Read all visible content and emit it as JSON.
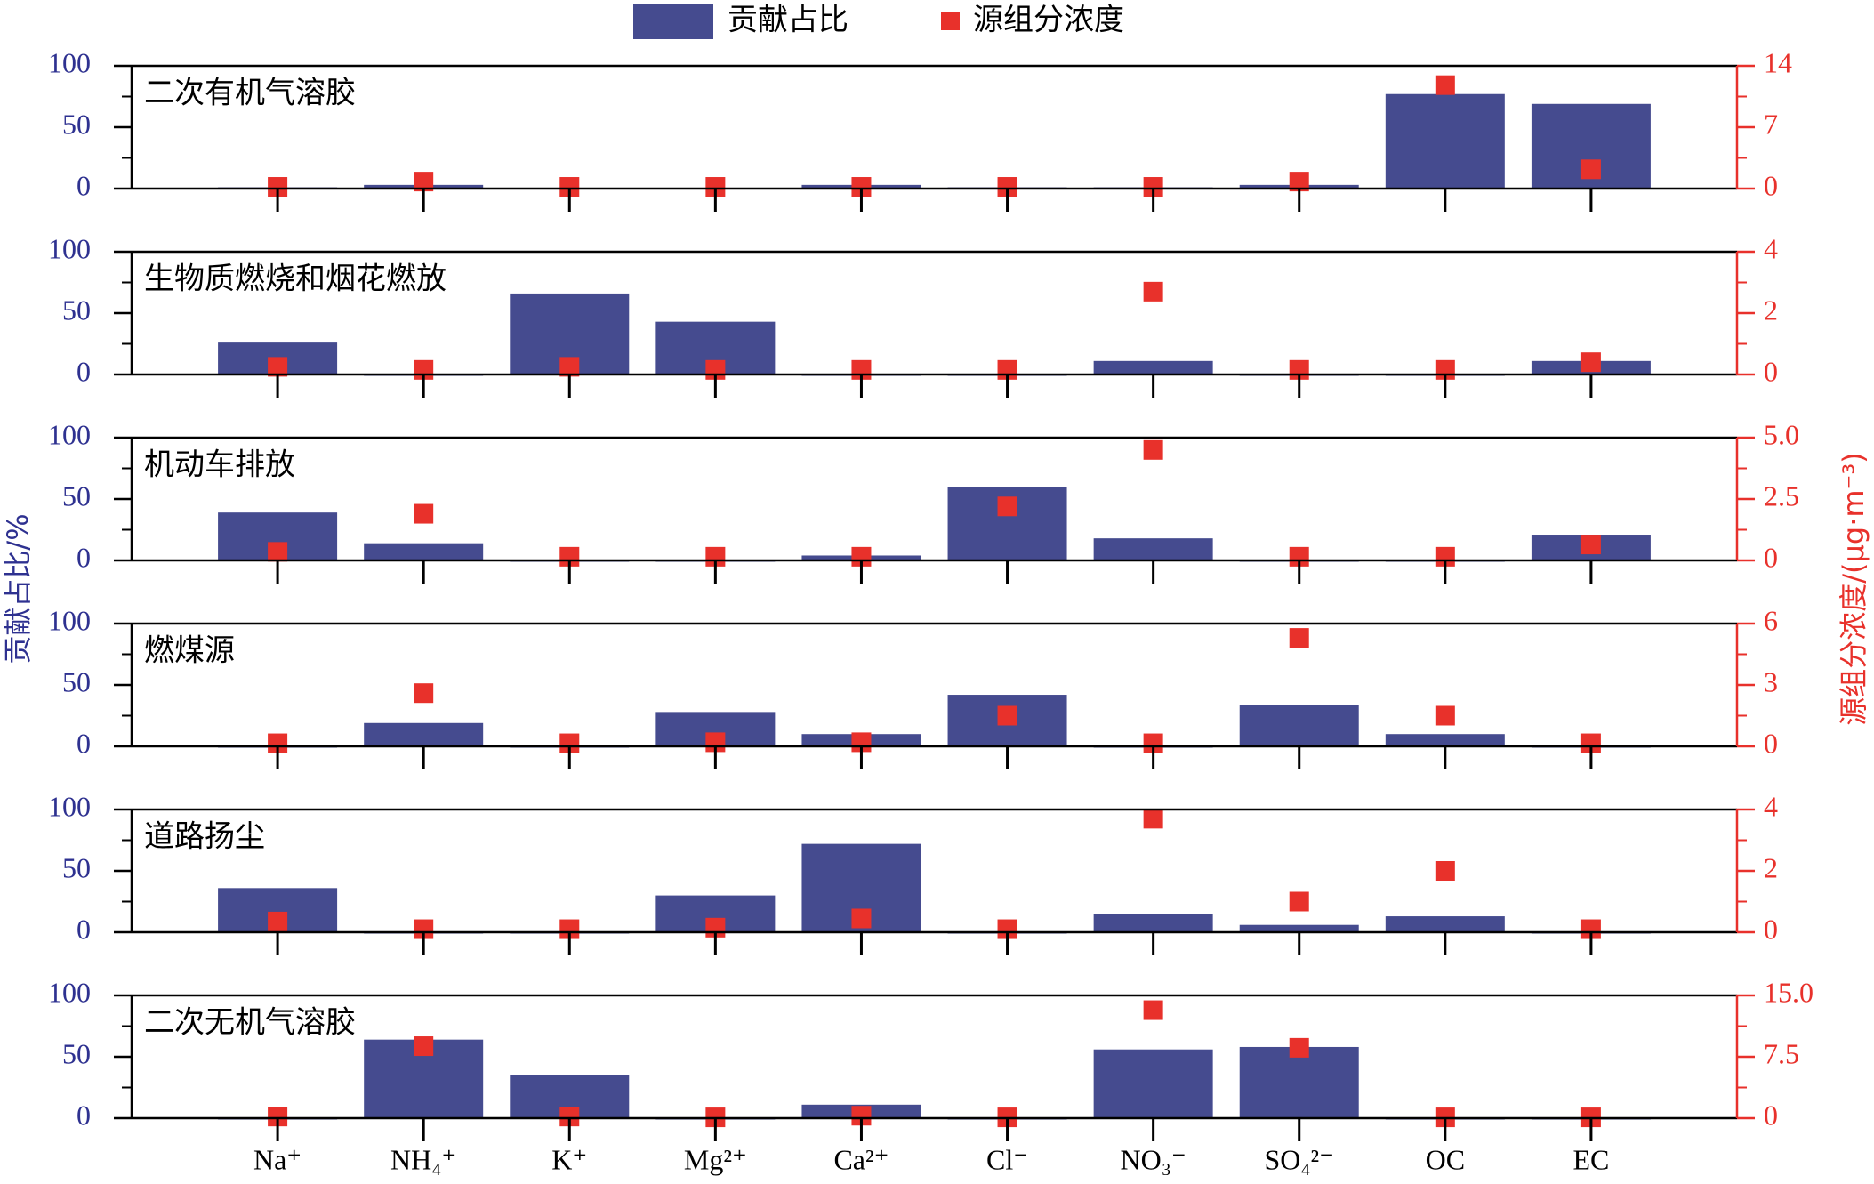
{
  "chart_data": [
    {
      "type": "bar_scatter",
      "title": "二次有机气溶胶",
      "series": [
        {
          "name": "贡献占比",
          "color": "#454b8f",
          "values": [
            1,
            3,
            0.5,
            0.5,
            3,
            1,
            1,
            3,
            77,
            69
          ]
        },
        {
          "name": "源组分浓度",
          "color": "#e8312b",
          "axis": "y2",
          "values": [
            0.2,
            0.8,
            0.2,
            0.2,
            0.2,
            0.2,
            0.2,
            0.8,
            11.8,
            2.2
          ]
        }
      ],
      "ylim": [
        0,
        100
      ],
      "yticks": [
        0,
        50,
        100
      ],
      "y2lim": [
        0,
        14
      ],
      "y2ticks": [
        0,
        7,
        14
      ]
    },
    {
      "type": "bar_scatter",
      "title": "生物质燃烧和烟花燃放",
      "series": [
        {
          "color": "#454b8f",
          "values": [
            26,
            0,
            66,
            43,
            0,
            0,
            11,
            0,
            0,
            11
          ]
        },
        {
          "color": "#e8312b",
          "axis": "y2",
          "values": [
            0.25,
            0.15,
            0.25,
            0.15,
            0.15,
            0.15,
            2.7,
            0.15,
            0.15,
            0.4
          ]
        }
      ],
      "ylim": [
        0,
        100
      ],
      "yticks": [
        0,
        50,
        100
      ],
      "y2lim": [
        0,
        4
      ],
      "y2ticks": [
        0,
        2,
        4
      ]
    },
    {
      "type": "bar_scatter",
      "title": "机动车排放",
      "series": [
        {
          "color": "#454b8f",
          "values": [
            39,
            14,
            0,
            0,
            4,
            60,
            18,
            0,
            0,
            21
          ]
        },
        {
          "color": "#e8312b",
          "axis": "y2",
          "values": [
            0.35,
            1.9,
            0.15,
            0.15,
            0.15,
            2.2,
            4.5,
            0.15,
            0.15,
            0.65
          ]
        }
      ],
      "ylim": [
        0,
        100
      ],
      "yticks": [
        0,
        50,
        100
      ],
      "y2lim": [
        0,
        5
      ],
      "y2ticks": [
        0,
        2.5,
        {
          "value": 5,
          "label": "5.0"
        }
      ]
    },
    {
      "type": "bar_scatter",
      "title": "燃煤源",
      "ylabel": "贡献占比/%",
      "y2label": "源组分浓度/(μg·m⁻³)",
      "series": [
        {
          "color": "#454b8f",
          "values": [
            0,
            19,
            0,
            28,
            10,
            42,
            0,
            34,
            10,
            0
          ]
        },
        {
          "color": "#e8312b",
          "axis": "y2",
          "values": [
            0.15,
            2.6,
            0.15,
            0.2,
            0.2,
            1.5,
            0.15,
            5.3,
            1.5,
            0.15
          ]
        }
      ],
      "ylim": [
        0,
        100
      ],
      "yticks": [
        0,
        50,
        100
      ],
      "y2lim": [
        0,
        6
      ],
      "y2ticks": [
        0,
        3,
        6
      ]
    },
    {
      "type": "bar_scatter",
      "title": "道路扬尘",
      "series": [
        {
          "color": "#454b8f",
          "values": [
            36,
            0,
            0,
            30,
            72,
            0,
            15,
            6,
            13,
            0
          ]
        },
        {
          "color": "#e8312b",
          "axis": "y2",
          "values": [
            0.35,
            0.1,
            0.1,
            0.15,
            0.45,
            0.1,
            3.7,
            1.0,
            2.0,
            0.1
          ]
        }
      ],
      "ylim": [
        0,
        100
      ],
      "yticks": [
        0,
        50,
        100
      ],
      "y2lim": [
        0,
        4
      ],
      "y2ticks": [
        0,
        2,
        4
      ]
    },
    {
      "type": "bar_scatter",
      "title": "二次无机气溶胶",
      "categories": [
        "Na⁺",
        "NH₄⁺",
        "K⁺",
        "Mg²⁺",
        "Ca²⁺",
        "Cl⁻",
        "NO₃⁻",
        "SO₄²⁻",
        "OC",
        "EC"
      ],
      "series": [
        {
          "color": "#454b8f",
          "values": [
            0,
            64,
            35,
            0,
            11,
            0,
            56,
            58,
            0,
            0
          ]
        },
        {
          "color": "#e8312b",
          "axis": "y2",
          "values": [
            0.2,
            8.8,
            0.2,
            0.1,
            0.3,
            0.1,
            13.2,
            8.6,
            0.1,
            0.1
          ]
        }
      ],
      "ylim": [
        0,
        100
      ],
      "yticks": [
        0,
        50,
        100
      ],
      "y2lim": [
        0,
        15
      ],
      "y2ticks": [
        0,
        7.5,
        {
          "value": 15,
          "label": "15.0"
        }
      ]
    }
  ]
}
